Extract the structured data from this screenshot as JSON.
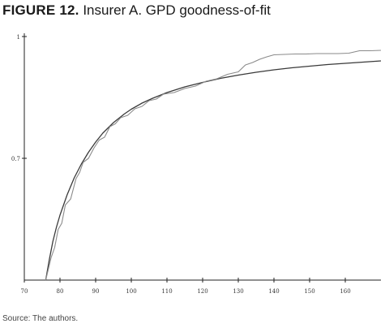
{
  "figure": {
    "label": "FIGURE 12.",
    "title": "Insurer A. GPD goodness-of-fit",
    "source": "Source: The authors."
  },
  "chart_data": {
    "type": "line",
    "title": "",
    "xlabel": "",
    "ylabel": "",
    "xlim": [
      70,
      170
    ],
    "ylim": [
      0.4,
      1
    ],
    "grid": false,
    "legend": "none",
    "x_ticks": [
      70,
      80,
      90,
      100,
      110,
      120,
      130,
      140,
      150,
      160
    ],
    "x_tick_labels": [
      "70",
      "80",
      "90",
      "100",
      "110",
      "120",
      "130",
      "140",
      "150",
      "160"
    ],
    "y_ticks": [
      0.7,
      1
    ],
    "y_tick_labels": [
      "0.7",
      "1"
    ],
    "colors": {
      "axis": "#222222",
      "fitted": "#3a3a3a",
      "empirical": "#8a8a8a"
    },
    "series": [
      {
        "values_x": [
          76,
          77,
          78,
          79,
          80,
          82,
          84,
          86,
          88,
          90,
          92,
          95,
          98,
          100,
          103,
          106,
          110,
          115,
          120,
          125,
          130,
          135,
          140,
          145,
          150,
          155,
          160,
          165,
          170
        ],
        "values_y": [
          0.4,
          0.45,
          0.495,
          0.53,
          0.56,
          0.61,
          0.652,
          0.686,
          0.715,
          0.74,
          0.762,
          0.788,
          0.809,
          0.821,
          0.836,
          0.848,
          0.862,
          0.876,
          0.887,
          0.897,
          0.905,
          0.912,
          0.918,
          0.923,
          0.927,
          0.931,
          0.934,
          0.937,
          0.94
        ]
      },
      {
        "values_x": [
          76,
          77.5,
          78.5,
          79.5,
          80.5,
          81.5,
          83,
          84.5,
          85.5,
          86.5,
          88,
          89.5,
          91,
          92.5,
          94,
          95.5,
          97,
          99,
          101,
          103,
          105,
          107,
          109,
          112,
          115,
          118,
          121,
          124,
          127,
          130,
          132,
          134,
          136,
          138,
          140,
          143,
          146,
          149,
          152,
          155,
          158,
          161,
          164,
          167,
          170
        ],
        "values_y": [
          0.4,
          0.455,
          0.48,
          0.525,
          0.54,
          0.585,
          0.6,
          0.65,
          0.665,
          0.69,
          0.7,
          0.725,
          0.745,
          0.752,
          0.778,
          0.785,
          0.8,
          0.806,
          0.822,
          0.828,
          0.842,
          0.846,
          0.858,
          0.862,
          0.872,
          0.878,
          0.89,
          0.896,
          0.907,
          0.913,
          0.93,
          0.936,
          0.944,
          0.95,
          0.955,
          0.956,
          0.957,
          0.957,
          0.958,
          0.958,
          0.958,
          0.959,
          0.965,
          0.965,
          0.966
        ]
      }
    ]
  }
}
